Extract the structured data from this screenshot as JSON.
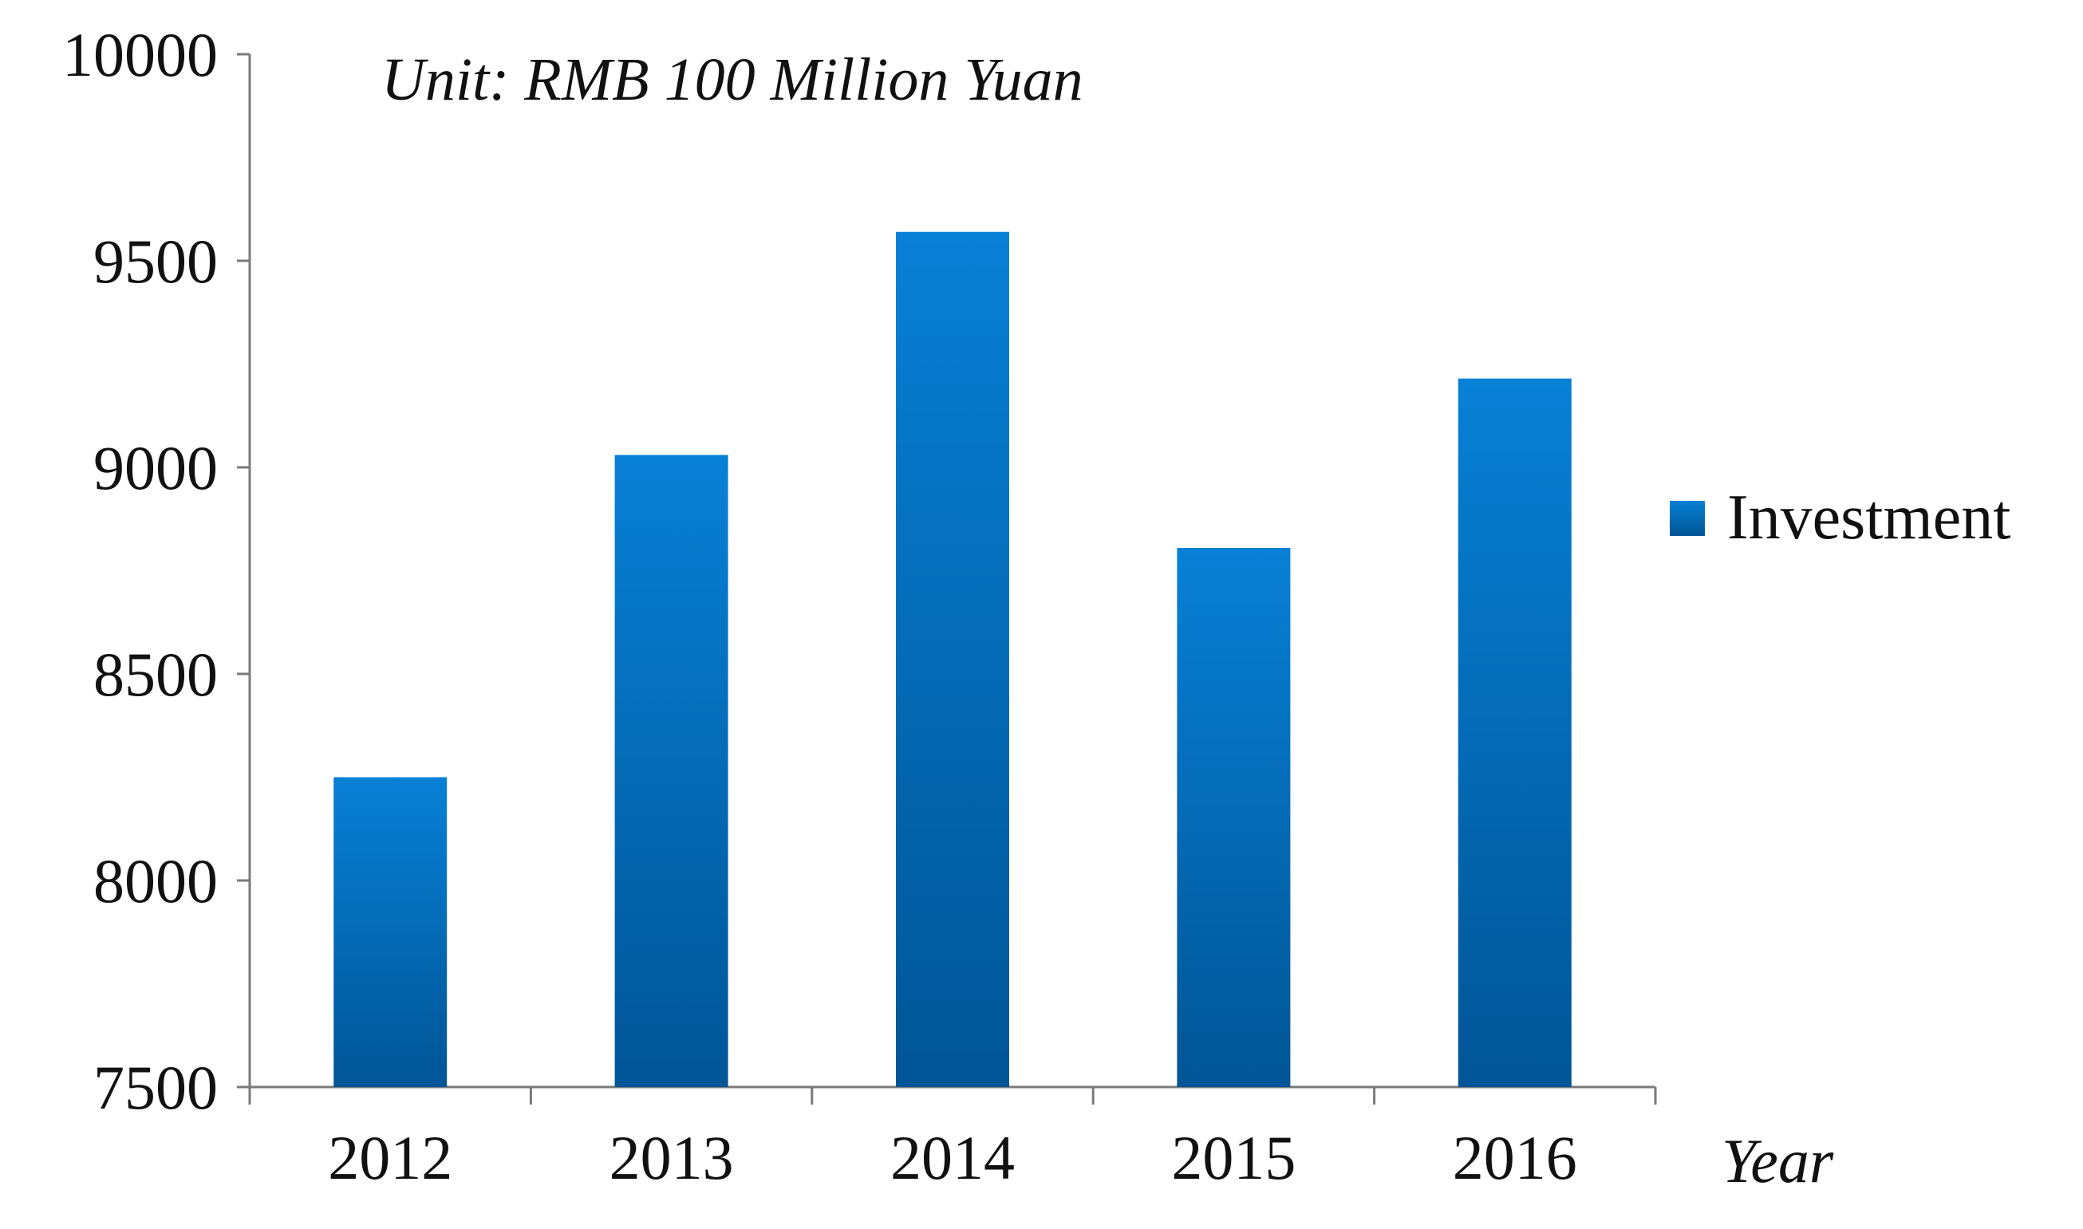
{
  "chart_data": {
    "type": "bar",
    "unit_note": "Unit: RMB 100 Million Yuan",
    "xlabel": "Year",
    "ylabel": "",
    "categories": [
      "2012",
      "2013",
      "2014",
      "2015",
      "2016"
    ],
    "series": [
      {
        "name": "Investment",
        "values": [
          8250,
          9030,
          9570,
          8805,
          9215
        ],
        "color": "#0a6fc0"
      }
    ],
    "ylim": [
      7500,
      10000
    ],
    "yticks": [
      7500,
      8000,
      8500,
      9000,
      9500,
      10000
    ],
    "grid": false,
    "legend_position": "right"
  },
  "colors": {
    "bar_top": "#0880d6",
    "bar_bottom": "#005596",
    "axis": "#7a7a7a"
  }
}
